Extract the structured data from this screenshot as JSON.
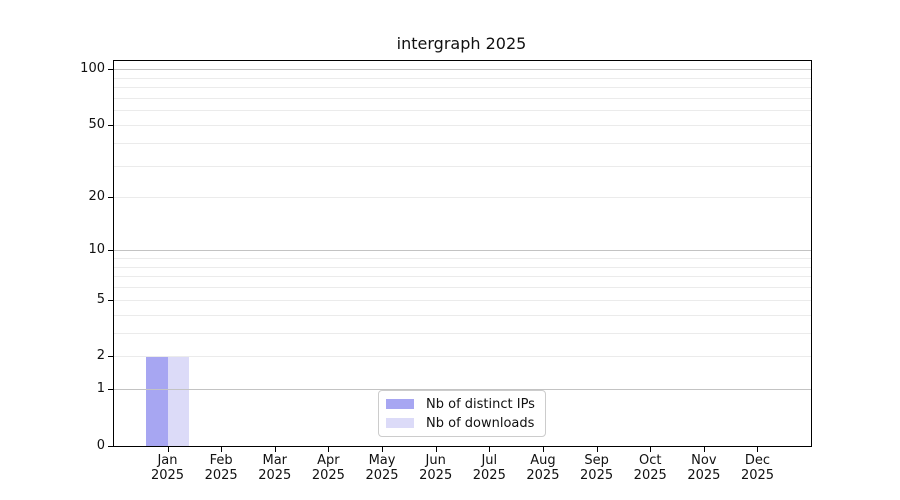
{
  "figure": {
    "background": "#ffffff"
  },
  "chart_data": {
    "type": "bar",
    "title": "intergraph 2025",
    "x_categories": [
      {
        "month": "Jan",
        "year": "2025"
      },
      {
        "month": "Feb",
        "year": "2025"
      },
      {
        "month": "Mar",
        "year": "2025"
      },
      {
        "month": "Apr",
        "year": "2025"
      },
      {
        "month": "May",
        "year": "2025"
      },
      {
        "month": "Jun",
        "year": "2025"
      },
      {
        "month": "Jul",
        "year": "2025"
      },
      {
        "month": "Aug",
        "year": "2025"
      },
      {
        "month": "Sep",
        "year": "2025"
      },
      {
        "month": "Oct",
        "year": "2025"
      },
      {
        "month": "Nov",
        "year": "2025"
      },
      {
        "month": "Dec",
        "year": "2025"
      }
    ],
    "series": [
      {
        "name": "Nb of distinct IPs",
        "color": "#a7a6f2",
        "values": [
          2,
          0,
          0,
          0,
          0,
          0,
          0,
          0,
          0,
          0,
          0,
          0
        ]
      },
      {
        "name": "Nb of downloads",
        "color": "#dcdbf8",
        "values": [
          2,
          0,
          0,
          0,
          0,
          0,
          0,
          0,
          0,
          0,
          0,
          0
        ]
      }
    ],
    "y_axis": {
      "scale": "log10(1+value)",
      "tick_values": [
        0,
        1,
        2,
        5,
        10,
        20,
        50,
        100
      ],
      "major_gridlines": [
        1,
        10,
        100
      ],
      "minor_gridlines": [
        2,
        3,
        4,
        5,
        6,
        7,
        8,
        9,
        20,
        30,
        40,
        50,
        60,
        70,
        80,
        90
      ],
      "ylim": [
        0,
        110
      ]
    },
    "legend": {
      "position": "lower center"
    },
    "grid": true
  },
  "colors": {
    "axis": "#000000",
    "text": "#111111",
    "major_grid": "#c3c3c3",
    "minor_grid": "#ebebeb",
    "legend_border": "#cccccc"
  }
}
